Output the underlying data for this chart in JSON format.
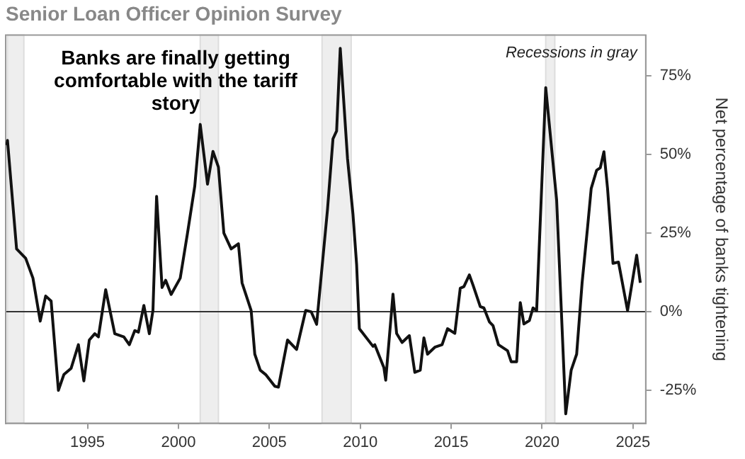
{
  "chart_data": {
    "type": "line",
    "title": "Senior Loan Officer Opinion Survey",
    "y2label": "Net percentage of banks tightening",
    "annotations": [
      "Banks are finally getting comfortable with the tariff story",
      "Recessions in gray"
    ],
    "x": [
      1990.56,
      1990.6,
      1991.1,
      1991.6,
      1992.0,
      1992.4,
      1992.7,
      1993.0,
      1993.4,
      1993.7,
      1994.1,
      1994.5,
      1994.8,
      1995.1,
      1995.4,
      1995.6,
      1996.0,
      1996.5,
      1997.0,
      1997.3,
      1997.6,
      1997.8,
      1998.1,
      1998.4,
      1998.6,
      1998.8,
      1999.1,
      1999.3,
      1999.6,
      2000.1,
      2000.5,
      2000.9,
      2001.2,
      2001.6,
      2001.9,
      2002.2,
      2002.5,
      2002.9,
      2003.3,
      2003.5,
      2004.0,
      2004.2,
      2004.5,
      2004.8,
      2005.3,
      2005.5,
      2006.0,
      2006.5,
      2007.0,
      2007.3,
      2007.6,
      2008.2,
      2008.5,
      2008.7,
      2008.9,
      2009.3,
      2009.6,
      2009.8,
      2009.95,
      2010.7,
      2010.8,
      2011.3,
      2011.4,
      2011.8,
      2012.0,
      2012.3,
      2012.7,
      2013.0,
      2013.3,
      2013.5,
      2013.7,
      2014.1,
      2014.5,
      2014.8,
      2015.2,
      2015.5,
      2015.7,
      2016.0,
      2016.2,
      2016.6,
      2016.8,
      2017.1,
      2017.3,
      2017.6,
      2018.1,
      2018.3,
      2018.6,
      2018.8,
      2019.0,
      2019.3,
      2019.5,
      2019.7,
      2020.2,
      2020.8,
      2021.3,
      2021.6,
      2021.9,
      2022.2,
      2022.5,
      2022.7,
      2023.0,
      2023.2,
      2023.4,
      2023.6,
      2023.9,
      2024.2,
      2024.7,
      2025.2,
      2025.4
    ],
    "series": [
      {
        "axis": "y2",
        "color": "#111111",
        "values": [
          53,
          54.5,
          20,
          17,
          10.7,
          -3,
          5,
          3.4,
          -25,
          -20,
          -18,
          -10.5,
          -22,
          -9,
          -7,
          -8,
          7,
          -7,
          -8,
          -10.5,
          -6,
          -6.5,
          2,
          -7,
          0.4,
          36.7,
          7.7,
          10,
          5.5,
          10.7,
          25,
          40,
          59.6,
          40.6,
          51,
          46,
          25,
          20,
          21.6,
          9.2,
          0.4,
          -13.5,
          -18.6,
          -20,
          -23.7,
          -24,
          -9,
          -12,
          0.4,
          0,
          -4,
          32.6,
          55,
          57.5,
          83.8,
          48.7,
          31,
          15,
          -5.4,
          -11,
          -10.5,
          -17.8,
          -21.8,
          5.6,
          -6.9,
          -9.8,
          -7.6,
          -19.3,
          -18.6,
          -8.3,
          -13.5,
          -11.3,
          -10.5,
          -5.4,
          -6.9,
          7.5,
          8,
          11.7,
          8.5,
          1.6,
          1.2,
          -3.2,
          -4.4,
          -10.5,
          -12.4,
          -15.9,
          -15.9,
          2.9,
          -3.9,
          -2.8,
          1.2,
          0.4,
          71.3,
          35.5,
          -32.5,
          -18.6,
          -13.5,
          9.2,
          26.8,
          39.2,
          45,
          45.8,
          50.9,
          39.2,
          15.4,
          15.8,
          0.4,
          18,
          9.2
        ]
      }
    ],
    "xlim": [
      1990.5,
      2025.7
    ],
    "xticks": [
      1995,
      2000,
      2005,
      2010,
      2015,
      2020,
      2025
    ],
    "y2lim": [
      -35.5,
      88
    ],
    "y2ticks": [
      {
        "value": -25,
        "label": "-25%"
      },
      {
        "value": 0,
        "label": "0%"
      },
      {
        "value": 25,
        "label": "25%"
      },
      {
        "value": 50,
        "label": "50%"
      },
      {
        "value": 75,
        "label": "75%"
      }
    ],
    "ref_lines": [
      {
        "axis": "y2",
        "value": 0,
        "color": "#333333"
      }
    ],
    "bands": [
      {
        "axis": "x",
        "from": 1990.6,
        "to": 1991.5,
        "color": "#eeeeee"
      },
      {
        "axis": "x",
        "from": 2001.2,
        "to": 2002.2,
        "color": "#eeeeee"
      },
      {
        "axis": "x",
        "from": 2007.9,
        "to": 2009.5,
        "color": "#eeeeee"
      },
      {
        "axis": "x",
        "from": 2020.2,
        "to": 2020.7,
        "color": "#eeeeee"
      }
    ],
    "grid": false,
    "legend": false,
    "marker": "none",
    "line_style": "solid"
  }
}
